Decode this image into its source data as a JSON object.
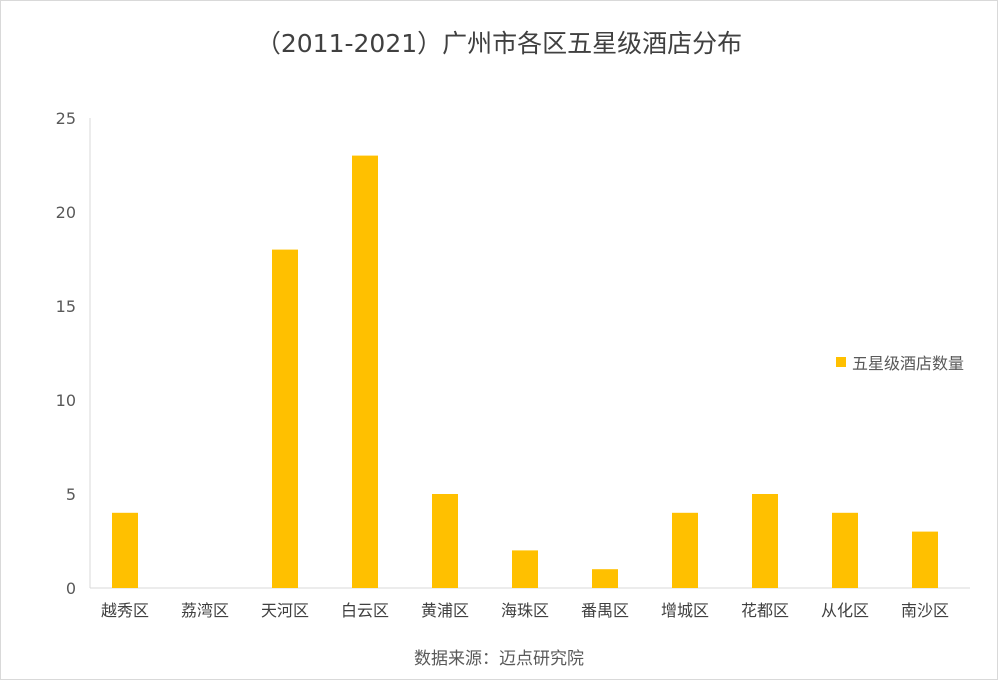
{
  "chart_data": {
    "type": "bar",
    "title": "（2011-2021）广州市各区五星级酒店分布",
    "categories": [
      "越秀区",
      "荔湾区",
      "天河区",
      "白云区",
      "黄浦区",
      "海珠区",
      "番禺区",
      "增城区",
      "花都区",
      "从化区",
      "南沙区"
    ],
    "series": [
      {
        "name": "五星级酒店数量",
        "values": [
          4,
          0,
          18,
          23,
          5,
          2,
          1,
          4,
          5,
          4,
          3
        ],
        "color": "#FFC000"
      }
    ],
    "ylim": [
      0,
      25
    ],
    "yticks": [
      0,
      5,
      10,
      15,
      20,
      25
    ],
    "grid": false,
    "legend": "right",
    "source": "数据来源：迈点研究院"
  }
}
